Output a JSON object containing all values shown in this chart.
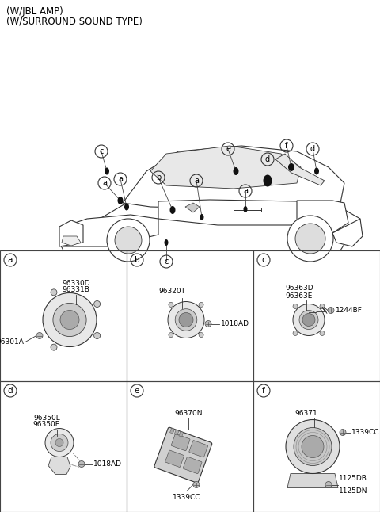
{
  "title_line1": "(W/JBL AMP)",
  "title_line2": "(W/SURROUND SOUND TYPE)",
  "bg_color": "#ffffff",
  "text_color": "#000000",
  "panel_labels": [
    "a",
    "b",
    "c",
    "d",
    "e",
    "f"
  ],
  "panel_a_parts": [
    "96330D",
    "96331B",
    "96301A"
  ],
  "panel_b_parts": [
    "96320T",
    "1018AD"
  ],
  "panel_c_parts": [
    "96363D",
    "96363E",
    "1244BF"
  ],
  "panel_d_parts": [
    "96350L",
    "96350E",
    "1018AD"
  ],
  "panel_e_parts": [
    "96370N",
    "1339CC"
  ],
  "panel_f_parts": [
    "96371",
    "1339CC",
    "1125DB",
    "1125DN"
  ]
}
